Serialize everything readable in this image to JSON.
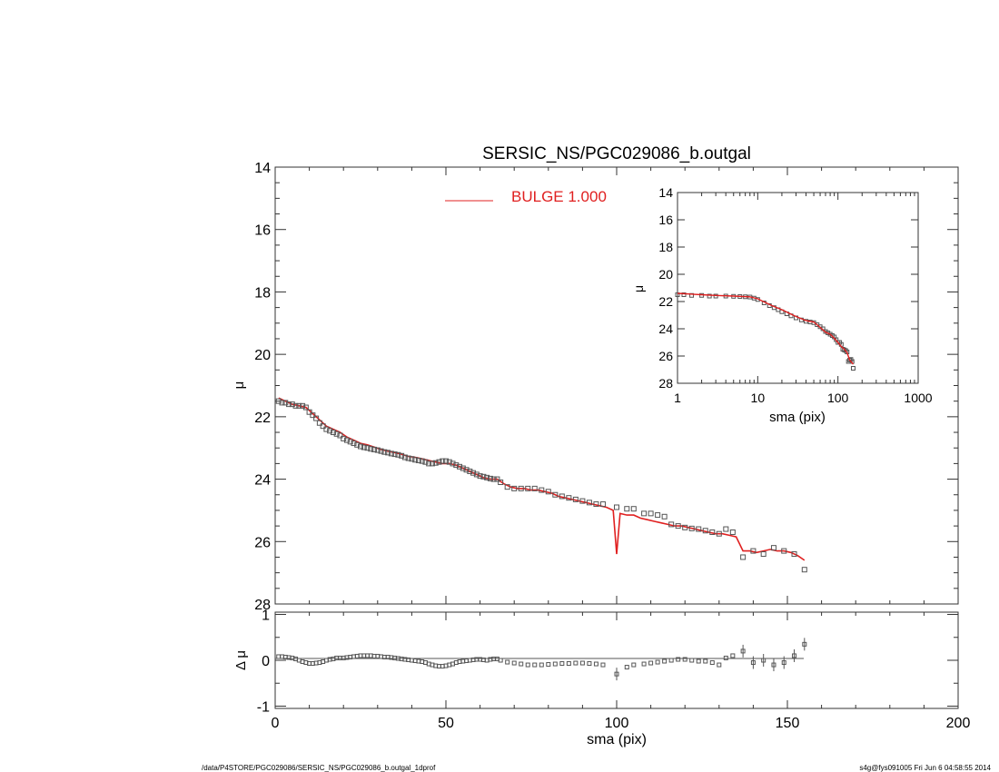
{
  "footer": {
    "left": "/data/P4STORE/PGC029086/SERSIC_NS/PGC029086_b.outgal_1dprof",
    "right": "s4g@fys091005  Fri Jun  6 04:58:55 2014"
  },
  "colors": {
    "model": "#e02020",
    "data": "#555555",
    "axes": "#333333",
    "zero_line": "#555555"
  },
  "chart_data": [
    {
      "id": "main",
      "type": "scatter",
      "title": "SERSIC_NS/PGC029086_b.outgal",
      "xlabel": "",
      "ylabel": "μ",
      "xlim": [
        0,
        200
      ],
      "ylim": [
        28,
        14
      ],
      "y_inverted": true,
      "xticks": [
        0,
        50,
        100,
        150,
        200
      ],
      "yticks": [
        14,
        16,
        18,
        20,
        22,
        24,
        26,
        28
      ],
      "ytick_labels": [
        "14",
        "16",
        "18",
        "20",
        "22",
        "24",
        "26",
        "28"
      ],
      "legend": {
        "label": "BULGE  1.000",
        "placement": "top-center"
      },
      "series": [
        {
          "role": "data",
          "marker": "square",
          "x": [
            1,
            2,
            3,
            4,
            5,
            6,
            7,
            8,
            9,
            10,
            11,
            12,
            13,
            14,
            15,
            16,
            17,
            18,
            19,
            20,
            21,
            22,
            23,
            24,
            25,
            26,
            27,
            28,
            29,
            30,
            31,
            32,
            33,
            34,
            35,
            36,
            37,
            38,
            39,
            40,
            41,
            42,
            43,
            44,
            45,
            46,
            47,
            48,
            49,
            50,
            51,
            52,
            53,
            54,
            55,
            56,
            57,
            58,
            59,
            60,
            61,
            62,
            63,
            64,
            65,
            66,
            68,
            70,
            72,
            74,
            76,
            78,
            80,
            82,
            84,
            86,
            88,
            90,
            92,
            94,
            96,
            100,
            103,
            105,
            108,
            110,
            112,
            114,
            116,
            118,
            120,
            122,
            124,
            126,
            128,
            130,
            132,
            134,
            137,
            140,
            143,
            146,
            149,
            152,
            155
          ],
          "y": [
            21.5,
            21.55,
            21.55,
            21.6,
            21.6,
            21.65,
            21.65,
            21.65,
            21.7,
            21.85,
            21.95,
            22.05,
            22.2,
            22.3,
            22.4,
            22.45,
            22.5,
            22.55,
            22.6,
            22.7,
            22.75,
            22.8,
            22.85,
            22.9,
            22.95,
            22.98,
            23.0,
            23.03,
            23.05,
            23.07,
            23.1,
            23.13,
            23.15,
            23.18,
            23.2,
            23.22,
            23.25,
            23.3,
            23.33,
            23.35,
            23.38,
            23.4,
            23.42,
            23.45,
            23.5,
            23.5,
            23.48,
            23.45,
            23.42,
            23.42,
            23.45,
            23.5,
            23.55,
            23.6,
            23.65,
            23.7,
            23.75,
            23.8,
            23.85,
            23.9,
            23.92,
            23.95,
            23.98,
            24.0,
            24.0,
            24.1,
            24.25,
            24.3,
            24.3,
            24.3,
            24.3,
            24.35,
            24.4,
            24.5,
            24.55,
            24.6,
            24.65,
            24.7,
            24.75,
            24.8,
            24.8,
            24.9,
            24.95,
            24.95,
            25.1,
            25.1,
            25.15,
            25.2,
            25.45,
            25.5,
            25.55,
            25.58,
            25.6,
            25.65,
            25.7,
            25.75,
            25.6,
            25.7,
            26.5,
            26.3,
            26.4,
            26.2,
            26.3,
            26.4,
            26.9
          ]
        },
        {
          "role": "model",
          "name": "BULGE  1.000",
          "x": [
            1,
            3,
            5,
            7,
            9,
            11,
            13,
            15,
            17,
            19,
            21,
            23,
            25,
            27,
            29,
            31,
            33,
            35,
            37,
            39,
            41,
            43,
            45,
            47,
            49,
            51,
            53,
            55,
            57,
            59,
            61,
            63,
            65,
            67,
            69,
            71,
            73,
            75,
            77,
            79,
            81,
            83,
            85,
            87,
            89,
            91,
            93,
            95,
            97,
            99,
            100,
            101,
            103,
            105,
            107,
            109,
            111,
            113,
            115,
            117,
            119,
            121,
            123,
            125,
            127,
            129,
            131,
            133,
            135,
            137,
            139,
            141,
            143,
            145,
            147,
            149,
            151,
            153,
            155
          ],
          "y": [
            21.4,
            21.5,
            21.6,
            21.65,
            21.7,
            21.9,
            22.1,
            22.3,
            22.4,
            22.5,
            22.65,
            22.75,
            22.85,
            22.9,
            22.97,
            23.05,
            23.1,
            23.15,
            23.2,
            23.27,
            23.3,
            23.35,
            23.4,
            23.45,
            23.5,
            23.5,
            23.55,
            23.65,
            23.75,
            23.85,
            23.95,
            24.0,
            24.0,
            24.15,
            24.25,
            24.3,
            24.3,
            24.35,
            24.35,
            24.4,
            24.45,
            24.55,
            24.6,
            24.65,
            24.7,
            24.75,
            24.8,
            24.85,
            24.9,
            25.0,
            26.4,
            25.1,
            25.15,
            25.15,
            25.25,
            25.3,
            25.35,
            25.4,
            25.45,
            25.5,
            25.5,
            25.55,
            25.6,
            25.65,
            25.7,
            25.75,
            25.75,
            25.8,
            25.85,
            26.3,
            26.3,
            26.35,
            26.3,
            26.25,
            26.3,
            26.3,
            26.35,
            26.45,
            26.6
          ]
        }
      ]
    },
    {
      "id": "residual",
      "type": "scatter",
      "title": "",
      "xlabel": "sma (pix)",
      "ylabel": "Δ μ",
      "xlim": [
        0,
        200
      ],
      "ylim": [
        -1.05,
        1.05
      ],
      "xticks": [
        0,
        50,
        100,
        150,
        200
      ],
      "yticks": [
        -1,
        0,
        1
      ],
      "zero_line": true,
      "series": [
        {
          "role": "data",
          "marker": "square",
          "x": [
            1,
            2,
            3,
            4,
            5,
            6,
            7,
            8,
            9,
            10,
            11,
            12,
            13,
            14,
            15,
            16,
            17,
            18,
            19,
            20,
            21,
            22,
            23,
            24,
            25,
            26,
            27,
            28,
            29,
            30,
            31,
            32,
            33,
            34,
            35,
            36,
            37,
            38,
            39,
            40,
            41,
            42,
            43,
            44,
            45,
            46,
            47,
            48,
            49,
            50,
            51,
            52,
            53,
            54,
            55,
            56,
            57,
            58,
            59,
            60,
            61,
            62,
            63,
            64,
            65,
            66,
            68,
            70,
            72,
            74,
            76,
            78,
            80,
            82,
            84,
            86,
            88,
            90,
            92,
            94,
            96,
            100,
            103,
            105,
            108,
            110,
            112,
            114,
            116,
            118,
            120,
            122,
            124,
            126,
            128,
            130,
            132,
            134,
            137,
            140,
            143,
            146,
            149,
            152,
            155
          ],
          "y": [
            0.08,
            0.08,
            0.07,
            0.06,
            0.05,
            0.03,
            0.0,
            -0.03,
            -0.05,
            -0.07,
            -0.07,
            -0.06,
            -0.05,
            -0.03,
            0.0,
            0.02,
            0.03,
            0.05,
            0.05,
            0.05,
            0.06,
            0.07,
            0.08,
            0.09,
            0.1,
            0.1,
            0.1,
            0.1,
            0.09,
            0.09,
            0.08,
            0.07,
            0.07,
            0.06,
            0.05,
            0.04,
            0.03,
            0.02,
            0.01,
            0.0,
            -0.01,
            -0.02,
            -0.03,
            -0.05,
            -0.08,
            -0.1,
            -0.12,
            -0.13,
            -0.13,
            -0.12,
            -0.1,
            -0.08,
            -0.05,
            -0.03,
            -0.02,
            -0.01,
            0.0,
            0.01,
            0.02,
            0.02,
            0.01,
            0.0,
            0.02,
            0.03,
            0.03,
            0.0,
            -0.04,
            -0.06,
            -0.08,
            -0.1,
            -0.1,
            -0.1,
            -0.09,
            -0.08,
            -0.07,
            -0.07,
            -0.06,
            -0.06,
            -0.07,
            -0.08,
            -0.1,
            -0.3,
            -0.15,
            -0.1,
            -0.08,
            -0.06,
            -0.04,
            -0.02,
            0.0,
            0.02,
            0.02,
            0.0,
            -0.02,
            -0.02,
            -0.05,
            -0.1,
            0.05,
            0.1,
            0.2,
            -0.05,
            0.0,
            -0.1,
            -0.05,
            0.1,
            0.35
          ],
          "errbars_at_x": [
            100,
            137,
            140,
            143,
            146,
            149,
            152,
            155
          ]
        }
      ]
    },
    {
      "id": "inset",
      "type": "scatter",
      "title": "",
      "xlabel": "sma (pix)",
      "ylabel": "μ",
      "x_scale": "log",
      "xlim": [
        1,
        1000
      ],
      "ylim": [
        28,
        14
      ],
      "y_inverted": true,
      "xticks": [
        1,
        10,
        100,
        1000
      ],
      "yticks": [
        14,
        16,
        18,
        20,
        22,
        24,
        26,
        28
      ],
      "series": [
        {
          "role": "data",
          "marker": "square",
          "x": [
            1.0,
            1.2,
            1.5,
            2,
            2.5,
            3,
            4,
            5,
            6,
            7,
            8,
            9,
            10,
            12,
            14,
            16,
            18,
            20,
            23,
            26,
            30,
            35,
            40,
            45,
            50,
            55,
            60,
            65,
            70,
            75,
            80,
            85,
            90,
            95,
            100,
            105,
            110,
            115,
            120,
            125,
            130,
            135,
            140,
            145,
            150,
            155
          ],
          "y": [
            21.5,
            21.5,
            21.55,
            21.55,
            21.6,
            21.6,
            21.6,
            21.62,
            21.63,
            21.65,
            21.67,
            21.75,
            21.85,
            22.1,
            22.3,
            22.45,
            22.6,
            22.75,
            22.9,
            23.05,
            23.2,
            23.35,
            23.45,
            23.5,
            23.55,
            23.7,
            23.85,
            24.0,
            24.2,
            24.3,
            24.4,
            24.5,
            24.6,
            24.8,
            25.0,
            25.0,
            25.15,
            25.5,
            25.55,
            25.6,
            25.7,
            26.4,
            26.3,
            26.25,
            26.4,
            26.9
          ]
        },
        {
          "role": "model",
          "x": [
            1,
            2,
            3,
            5,
            8,
            10,
            15,
            20,
            30,
            40,
            50,
            60,
            70,
            80,
            90,
            100,
            110,
            120,
            130,
            140,
            155
          ],
          "y": [
            21.4,
            21.5,
            21.55,
            21.6,
            21.65,
            21.8,
            22.3,
            22.6,
            23.1,
            23.4,
            23.5,
            23.9,
            24.25,
            24.4,
            24.7,
            25.0,
            25.3,
            25.5,
            25.75,
            26.3,
            26.6
          ]
        }
      ]
    }
  ]
}
